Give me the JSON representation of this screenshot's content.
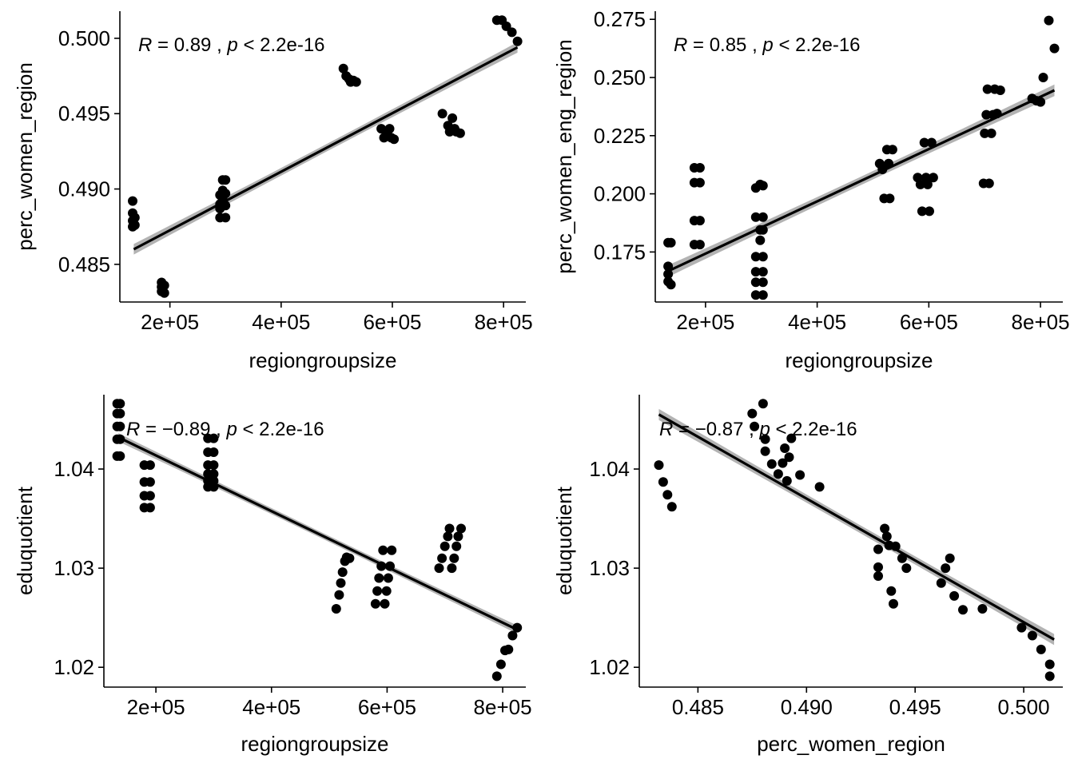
{
  "chart_data": [
    {
      "type": "scatter",
      "xlabel": "regiongroupsize",
      "ylabel": "perc_women_region",
      "xlim": [
        110000,
        840000
      ],
      "ylim": [
        0.4825,
        0.5018
      ],
      "xticks": [
        200000,
        400000,
        600000,
        800000
      ],
      "xtick_labels": [
        "2e+05",
        "4e+05",
        "6e+05",
        "8e+05"
      ],
      "yticks": [
        0.485,
        0.49,
        0.495,
        0.5
      ],
      "ytick_labels": [
        "0.485",
        "0.490",
        "0.495",
        "0.500"
      ],
      "annotation": {
        "r_label": "R",
        "r_value": " = 0.89 , ",
        "p_label": "p",
        "p_value": " < 2.2e-16"
      },
      "fit": {
        "x": [
          135000,
          825000
        ],
        "y": [
          0.486,
          0.4994
        ],
        "se": 0.00025
      },
      "points": [
        {
          "x": 133000,
          "y": 0.4892
        },
        {
          "x": 133000,
          "y": 0.4884
        },
        {
          "x": 133000,
          "y": 0.4879
        },
        {
          "x": 133000,
          "y": 0.4875
        },
        {
          "x": 137000,
          "y": 0.4881
        },
        {
          "x": 137000,
          "y": 0.4876
        },
        {
          "x": 185000,
          "y": 0.4838
        },
        {
          "x": 185000,
          "y": 0.4835
        },
        {
          "x": 185000,
          "y": 0.4832
        },
        {
          "x": 190000,
          "y": 0.4836
        },
        {
          "x": 190000,
          "y": 0.4831
        },
        {
          "x": 290000,
          "y": 0.4896
        },
        {
          "x": 290000,
          "y": 0.489
        },
        {
          "x": 290000,
          "y": 0.4887
        },
        {
          "x": 290000,
          "y": 0.4881
        },
        {
          "x": 295000,
          "y": 0.4906
        },
        {
          "x": 295000,
          "y": 0.4899
        },
        {
          "x": 295000,
          "y": 0.4893
        },
        {
          "x": 300000,
          "y": 0.4906
        },
        {
          "x": 300000,
          "y": 0.4897
        },
        {
          "x": 300000,
          "y": 0.4889
        },
        {
          "x": 300000,
          "y": 0.4881
        },
        {
          "x": 512000,
          "y": 0.498
        },
        {
          "x": 517000,
          "y": 0.4975
        },
        {
          "x": 522000,
          "y": 0.4973
        },
        {
          "x": 525000,
          "y": 0.4971
        },
        {
          "x": 530000,
          "y": 0.4972
        },
        {
          "x": 535000,
          "y": 0.4971
        },
        {
          "x": 580000,
          "y": 0.494
        },
        {
          "x": 585000,
          "y": 0.4934
        },
        {
          "x": 590000,
          "y": 0.4938
        },
        {
          "x": 595000,
          "y": 0.494
        },
        {
          "x": 598000,
          "y": 0.4934
        },
        {
          "x": 603000,
          "y": 0.4933
        },
        {
          "x": 690000,
          "y": 0.495
        },
        {
          "x": 700000,
          "y": 0.4942
        },
        {
          "x": 703000,
          "y": 0.4938
        },
        {
          "x": 708000,
          "y": 0.4947
        },
        {
          "x": 712000,
          "y": 0.494
        },
        {
          "x": 715000,
          "y": 0.4938
        },
        {
          "x": 722000,
          "y": 0.4937
        },
        {
          "x": 788000,
          "y": 0.5012
        },
        {
          "x": 797000,
          "y": 0.5012
        },
        {
          "x": 805000,
          "y": 0.5008
        },
        {
          "x": 815000,
          "y": 0.5004
        },
        {
          "x": 825000,
          "y": 0.4998
        }
      ]
    },
    {
      "type": "scatter",
      "xlabel": "regiongroupsize",
      "ylabel": "perc_women_eng_region",
      "xlim": [
        110000,
        840000
      ],
      "ylim": [
        0.1535,
        0.2785
      ],
      "xticks": [
        200000,
        400000,
        600000,
        800000
      ],
      "xtick_labels": [
        "2e+05",
        "4e+05",
        "6e+05",
        "8e+05"
      ],
      "yticks": [
        0.175,
        0.2,
        0.225,
        0.25,
        0.275
      ],
      "ytick_labels": [
        "0.175",
        "0.200",
        "0.225",
        "0.250",
        "0.275"
      ],
      "annotation": {
        "r_label": "R",
        "r_value": " = 0.85 , ",
        "p_label": "p",
        "p_value": " < 2.2e-16"
      },
      "fit": {
        "x": [
          135000,
          825000
        ],
        "y": [
          0.167,
          0.2445
        ],
        "se": 0.0018
      },
      "points": [
        {
          "x": 133000,
          "y": 0.179
        },
        {
          "x": 133000,
          "y": 0.1688
        },
        {
          "x": 133000,
          "y": 0.1655
        },
        {
          "x": 133000,
          "y": 0.1623
        },
        {
          "x": 138000,
          "y": 0.179
        },
        {
          "x": 138000,
          "y": 0.161
        },
        {
          "x": 180000,
          "y": 0.2112
        },
        {
          "x": 180000,
          "y": 0.2048
        },
        {
          "x": 180000,
          "y": 0.1885
        },
        {
          "x": 180000,
          "y": 0.1782
        },
        {
          "x": 190000,
          "y": 0.2112
        },
        {
          "x": 190000,
          "y": 0.2048
        },
        {
          "x": 190000,
          "y": 0.1885
        },
        {
          "x": 190000,
          "y": 0.1782
        },
        {
          "x": 290000,
          "y": 0.2025
        },
        {
          "x": 290000,
          "y": 0.19
        },
        {
          "x": 290000,
          "y": 0.173
        },
        {
          "x": 290000,
          "y": 0.1665
        },
        {
          "x": 290000,
          "y": 0.162
        },
        {
          "x": 290000,
          "y": 0.1565
        },
        {
          "x": 298000,
          "y": 0.204
        },
        {
          "x": 298000,
          "y": 0.1845
        },
        {
          "x": 298000,
          "y": 0.18
        },
        {
          "x": 303000,
          "y": 0.2035
        },
        {
          "x": 303000,
          "y": 0.19
        },
        {
          "x": 303000,
          "y": 0.1845
        },
        {
          "x": 303000,
          "y": 0.173
        },
        {
          "x": 303000,
          "y": 0.1665
        },
        {
          "x": 303000,
          "y": 0.162
        },
        {
          "x": 303000,
          "y": 0.1565
        },
        {
          "x": 512000,
          "y": 0.213
        },
        {
          "x": 517000,
          "y": 0.2105
        },
        {
          "x": 520000,
          "y": 0.198
        },
        {
          "x": 525000,
          "y": 0.219
        },
        {
          "x": 528000,
          "y": 0.213
        },
        {
          "x": 530000,
          "y": 0.198
        },
        {
          "x": 535000,
          "y": 0.219
        },
        {
          "x": 580000,
          "y": 0.207
        },
        {
          "x": 585000,
          "y": 0.204
        },
        {
          "x": 588000,
          "y": 0.1925
        },
        {
          "x": 592000,
          "y": 0.222
        },
        {
          "x": 595000,
          "y": 0.207
        },
        {
          "x": 598000,
          "y": 0.204
        },
        {
          "x": 601000,
          "y": 0.1925
        },
        {
          "x": 605000,
          "y": 0.222
        },
        {
          "x": 608000,
          "y": 0.207
        },
        {
          "x": 698000,
          "y": 0.2045
        },
        {
          "x": 700000,
          "y": 0.226
        },
        {
          "x": 703000,
          "y": 0.234
        },
        {
          "x": 705000,
          "y": 0.245
        },
        {
          "x": 708000,
          "y": 0.2045
        },
        {
          "x": 712000,
          "y": 0.226
        },
        {
          "x": 715000,
          "y": 0.234
        },
        {
          "x": 718000,
          "y": 0.245
        },
        {
          "x": 722000,
          "y": 0.2345
        },
        {
          "x": 728000,
          "y": 0.2445
        },
        {
          "x": 785000,
          "y": 0.241
        },
        {
          "x": 793000,
          "y": 0.24
        },
        {
          "x": 800000,
          "y": 0.2395
        },
        {
          "x": 805000,
          "y": 0.25
        },
        {
          "x": 815000,
          "y": 0.2745
        },
        {
          "x": 825000,
          "y": 0.2625
        }
      ]
    },
    {
      "type": "scatter",
      "xlabel": "regiongroupsize",
      "ylabel": "eduquotient",
      "xlim": [
        110000,
        840000
      ],
      "ylim": [
        1.018,
        1.0475
      ],
      "xticks": [
        200000,
        400000,
        600000,
        800000
      ],
      "xtick_labels": [
        "2e+05",
        "4e+05",
        "6e+05",
        "8e+05"
      ],
      "yticks": [
        1.02,
        1.03,
        1.04
      ],
      "ytick_labels": [
        "1.02",
        "1.03",
        "1.04"
      ],
      "annotation": {
        "r_label": "R",
        "r_value": " = −0.89 , ",
        "p_label": "p",
        "p_value": " < 2.2e-16"
      },
      "fit": {
        "x": [
          135000,
          825000
        ],
        "y": [
          1.0432,
          1.0238
        ],
        "se": 0.0003
      },
      "points": [
        {
          "x": 133000,
          "y": 1.0466
        },
        {
          "x": 133000,
          "y": 1.0456
        },
        {
          "x": 133000,
          "y": 1.0443
        },
        {
          "x": 133000,
          "y": 1.043
        },
        {
          "x": 133000,
          "y": 1.0413
        },
        {
          "x": 138000,
          "y": 1.0466
        },
        {
          "x": 138000,
          "y": 1.0456
        },
        {
          "x": 138000,
          "y": 1.0443
        },
        {
          "x": 138000,
          "y": 1.043
        },
        {
          "x": 138000,
          "y": 1.0413
        },
        {
          "x": 180000,
          "y": 1.0404
        },
        {
          "x": 180000,
          "y": 1.0387
        },
        {
          "x": 180000,
          "y": 1.0373
        },
        {
          "x": 180000,
          "y": 1.0361
        },
        {
          "x": 190000,
          "y": 1.0404
        },
        {
          "x": 190000,
          "y": 1.0387
        },
        {
          "x": 190000,
          "y": 1.0373
        },
        {
          "x": 190000,
          "y": 1.0361
        },
        {
          "x": 290000,
          "y": 1.0431
        },
        {
          "x": 290000,
          "y": 1.0417
        },
        {
          "x": 290000,
          "y": 1.0404
        },
        {
          "x": 290000,
          "y": 1.0395
        },
        {
          "x": 290000,
          "y": 1.0388
        },
        {
          "x": 290000,
          "y": 1.0382
        },
        {
          "x": 300000,
          "y": 1.0431
        },
        {
          "x": 300000,
          "y": 1.0417
        },
        {
          "x": 300000,
          "y": 1.0404
        },
        {
          "x": 300000,
          "y": 1.0395
        },
        {
          "x": 300000,
          "y": 1.0388
        },
        {
          "x": 300000,
          "y": 1.0382
        },
        {
          "x": 512000,
          "y": 1.0259
        },
        {
          "x": 517000,
          "y": 1.0273
        },
        {
          "x": 520000,
          "y": 1.0285
        },
        {
          "x": 523000,
          "y": 1.0296
        },
        {
          "x": 527000,
          "y": 1.0307
        },
        {
          "x": 530000,
          "y": 1.0311
        },
        {
          "x": 535000,
          "y": 1.031
        },
        {
          "x": 580000,
          "y": 1.0264
        },
        {
          "x": 583000,
          "y": 1.0277
        },
        {
          "x": 586000,
          "y": 1.029
        },
        {
          "x": 590000,
          "y": 1.0302
        },
        {
          "x": 593000,
          "y": 1.0318
        },
        {
          "x": 596000,
          "y": 1.0264
        },
        {
          "x": 599000,
          "y": 1.0277
        },
        {
          "x": 602000,
          "y": 1.029
        },
        {
          "x": 605000,
          "y": 1.0302
        },
        {
          "x": 608000,
          "y": 1.0318
        },
        {
          "x": 690000,
          "y": 1.03
        },
        {
          "x": 695000,
          "y": 1.031
        },
        {
          "x": 700000,
          "y": 1.0322
        },
        {
          "x": 705000,
          "y": 1.0332
        },
        {
          "x": 708000,
          "y": 1.034
        },
        {
          "x": 712000,
          "y": 1.03
        },
        {
          "x": 716000,
          "y": 1.031
        },
        {
          "x": 720000,
          "y": 1.0322
        },
        {
          "x": 723000,
          "y": 1.0332
        },
        {
          "x": 728000,
          "y": 1.034
        },
        {
          "x": 790000,
          "y": 1.0191
        },
        {
          "x": 797000,
          "y": 1.0203
        },
        {
          "x": 804000,
          "y": 1.0217
        },
        {
          "x": 810000,
          "y": 1.0218
        },
        {
          "x": 817000,
          "y": 1.0232
        },
        {
          "x": 825000,
          "y": 1.024
        }
      ]
    },
    {
      "type": "scatter",
      "xlabel": "perc_women_region",
      "ylabel": "eduquotient",
      "xlim": [
        0.4823,
        0.5018
      ],
      "ylim": [
        1.018,
        1.0475
      ],
      "xticks": [
        0.485,
        0.49,
        0.495,
        0.5
      ],
      "xtick_labels": [
        "0.485",
        "0.490",
        "0.495",
        "0.500"
      ],
      "yticks": [
        1.02,
        1.03,
        1.04
      ],
      "ytick_labels": [
        "1.02",
        "1.03",
        "1.04"
      ],
      "annotation": {
        "r_label": "R",
        "r_value": " = −0.87 , ",
        "p_label": "p",
        "p_value": " < 2.2e-16"
      },
      "fit": {
        "x": [
          0.4832,
          0.5014
        ],
        "y": [
          1.0455,
          1.0228
        ],
        "se": 0.0004
      },
      "points": [
        {
          "x": 0.4832,
          "y": 1.0404
        },
        {
          "x": 0.4834,
          "y": 1.0387
        },
        {
          "x": 0.4836,
          "y": 1.0374
        },
        {
          "x": 0.4838,
          "y": 1.0362
        },
        {
          "x": 0.4875,
          "y": 1.0456
        },
        {
          "x": 0.4876,
          "y": 1.0443
        },
        {
          "x": 0.488,
          "y": 1.0466
        },
        {
          "x": 0.4881,
          "y": 1.043
        },
        {
          "x": 0.4881,
          "y": 1.0418
        },
        {
          "x": 0.4884,
          "y": 1.0405
        },
        {
          "x": 0.4887,
          "y": 1.0395
        },
        {
          "x": 0.4889,
          "y": 1.0406
        },
        {
          "x": 0.489,
          "y": 1.0421
        },
        {
          "x": 0.4891,
          "y": 1.0388
        },
        {
          "x": 0.4892,
          "y": 1.0412
        },
        {
          "x": 0.4893,
          "y": 1.0431
        },
        {
          "x": 0.4897,
          "y": 1.0394
        },
        {
          "x": 0.4906,
          "y": 1.0382
        },
        {
          "x": 0.4933,
          "y": 1.0319
        },
        {
          "x": 0.4933,
          "y": 1.0301
        },
        {
          "x": 0.4933,
          "y": 1.0292
        },
        {
          "x": 0.4936,
          "y": 1.034
        },
        {
          "x": 0.4937,
          "y": 1.0332
        },
        {
          "x": 0.4938,
          "y": 1.0323
        },
        {
          "x": 0.4939,
          "y": 1.0277
        },
        {
          "x": 0.494,
          "y": 1.0264
        },
        {
          "x": 0.4941,
          "y": 1.0322
        },
        {
          "x": 0.4944,
          "y": 1.031
        },
        {
          "x": 0.4946,
          "y": 1.03
        },
        {
          "x": 0.4962,
          "y": 1.0285
        },
        {
          "x": 0.4964,
          "y": 1.03
        },
        {
          "x": 0.4966,
          "y": 1.031
        },
        {
          "x": 0.4968,
          "y": 1.0272
        },
        {
          "x": 0.4972,
          "y": 1.0258
        },
        {
          "x": 0.4981,
          "y": 1.0259
        },
        {
          "x": 0.4999,
          "y": 1.024
        },
        {
          "x": 0.5004,
          "y": 1.0232
        },
        {
          "x": 0.5008,
          "y": 1.0218
        },
        {
          "x": 0.5012,
          "y": 1.0203
        },
        {
          "x": 0.5012,
          "y": 1.0191
        }
      ]
    }
  ]
}
